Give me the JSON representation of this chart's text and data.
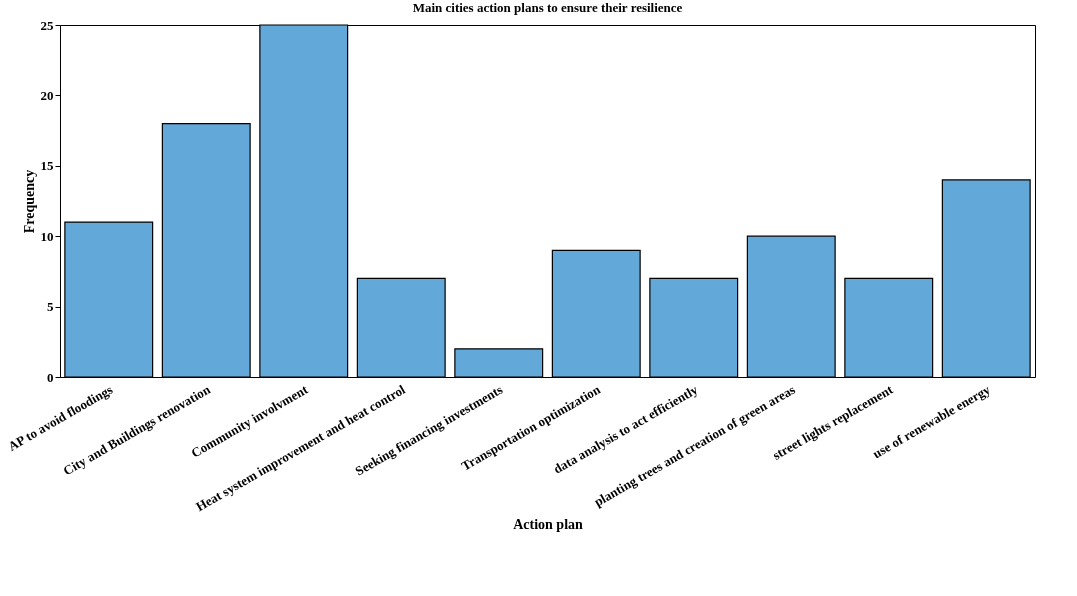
{
  "chart_data": {
    "type": "bar",
    "title": "Main cities action plans to ensure their resilience",
    "xlabel": "Action plan",
    "ylabel": "Frequency",
    "categories": [
      "AP to avoid floodings",
      "City and Buildings renovation",
      "Community involvment",
      "Heat system improvement and heat control",
      "Seeking financing investments",
      "Transportation optimization",
      "data analysis to act efficiently",
      "planting trees and creation of green areas",
      "street lights replacement",
      "use of renewable energy"
    ],
    "values": [
      11,
      18,
      25,
      7,
      2,
      9,
      7,
      10,
      7,
      14
    ],
    "color": "#62a8d8",
    "ylim": [
      0,
      25
    ],
    "yticks": [
      0,
      5,
      10,
      15,
      20,
      25
    ],
    "grid": false
  }
}
